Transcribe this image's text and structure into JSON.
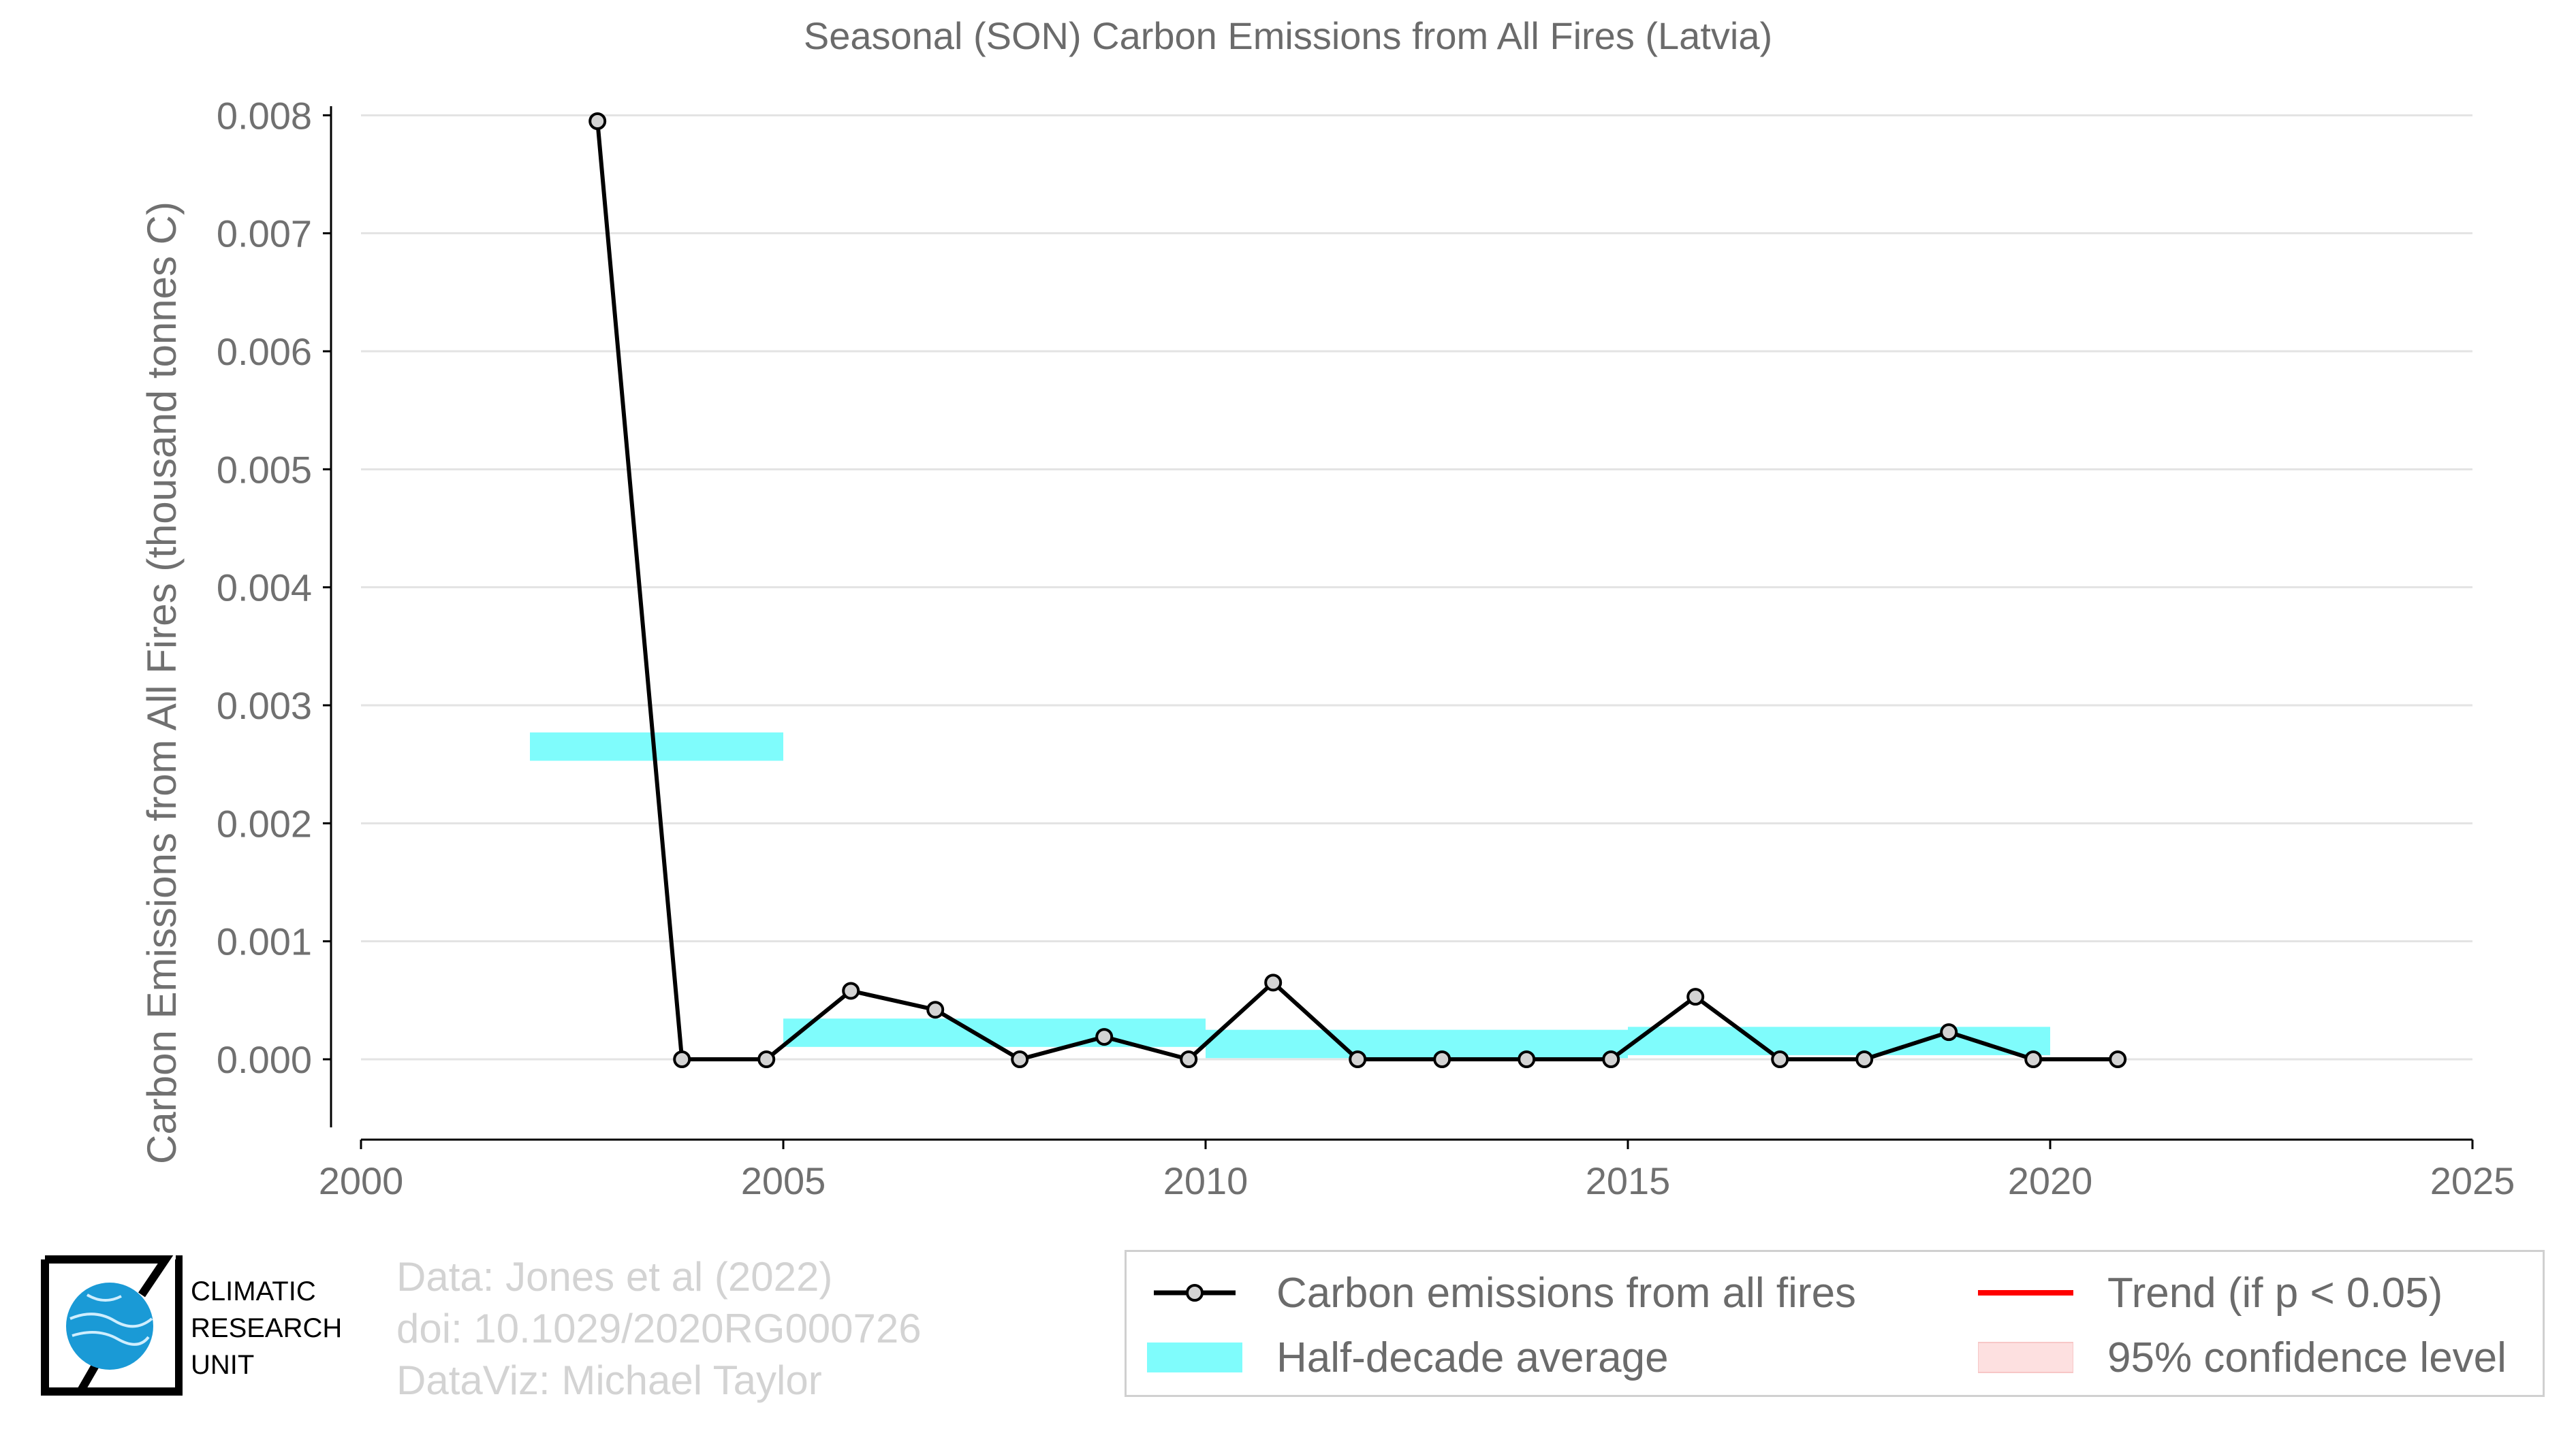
{
  "chart_data": {
    "type": "line",
    "title": "Seasonal (SON) Carbon Emissions from All Fires (Latvia)",
    "xlabel": "",
    "ylabel": "Carbon Emissions from All Fires (thousand tonnes C)",
    "xlim": [
      2000,
      2025
    ],
    "ylim": [
      -0.0006,
      0.0081
    ],
    "x_ticks": [
      "2000",
      "2005",
      "2010",
      "2015",
      "2020",
      "2025"
    ],
    "y_ticks": [
      "0.000",
      "0.001",
      "0.002",
      "0.003",
      "0.004",
      "0.005",
      "0.006",
      "0.007",
      "0.008"
    ],
    "grid": "horizontal",
    "legend_position": "bottom-right",
    "series": [
      {
        "name": "Carbon emissions from all fires",
        "type": "line",
        "color": "#000000",
        "marker_fill": "#d3d3d3",
        "x": [
          2002.8,
          2003.8,
          2004.8,
          2005.8,
          2006.8,
          2007.8,
          2008.8,
          2009.8,
          2010.8,
          2011.8,
          2012.8,
          2013.8,
          2014.8,
          2015.8,
          2016.8,
          2017.8,
          2018.8,
          2019.8,
          2020.8
        ],
        "values": [
          0.00795,
          0.0,
          0.0,
          0.00058,
          0.00042,
          0.0,
          0.00019,
          0.0,
          0.00065,
          0.0,
          0.0,
          0.0,
          0.0,
          0.00053,
          0.0,
          0.0,
          0.00023,
          0.0,
          0.0
        ]
      },
      {
        "name": "Half-decade average",
        "type": "band",
        "color": "#7ffcfc",
        "segments": [
          {
            "x0": 2002,
            "x1": 2005,
            "center": 0.00265,
            "half_width": 0.00012
          },
          {
            "x0": 2005,
            "x1": 2010,
            "center": 0.000225,
            "half_width": 0.00012
          },
          {
            "x0": 2010,
            "x1": 2015,
            "center": 0.00013,
            "half_width": 0.00012
          },
          {
            "x0": 2015,
            "x1": 2020,
            "center": 0.000155,
            "half_width": 0.00012
          }
        ]
      }
    ]
  },
  "legend": {
    "items": [
      {
        "label": "Carbon emissions from all fires",
        "symbol": "line-marker",
        "color": "#000000"
      },
      {
        "label": "Half-decade average",
        "symbol": "band",
        "color": "#7ffcfc"
      },
      {
        "label": "Trend (if p < 0.05)",
        "symbol": "line",
        "color": "#ff0000"
      },
      {
        "label": "95% confidence level",
        "symbol": "band",
        "color": "#fde0e0"
      }
    ]
  },
  "source": {
    "line1": "Data: Jones et al (2022)",
    "line2": "doi: 10.1029/2020RG000726",
    "line3": "DataViz: Michael Taylor"
  },
  "logo": {
    "line1": "CLIMATIC",
    "line2": "RESEARCH",
    "line3": "UNIT"
  }
}
